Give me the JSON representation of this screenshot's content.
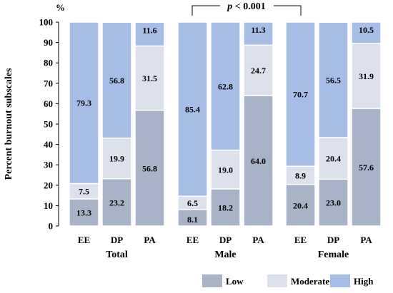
{
  "chart_data": {
    "type": "bar",
    "stacked": true,
    "ylabel": "Percent burnout subscales",
    "y_unit": "%",
    "ylim": [
      0,
      100
    ],
    "yticks": [
      0,
      10,
      20,
      30,
      40,
      50,
      60,
      70,
      80,
      90,
      100
    ],
    "grid": false,
    "legend_position": "bottom-right",
    "significance": "p < 0.001",
    "groups": [
      {
        "name": "Total",
        "categories": [
          "EE",
          "DP",
          "PA"
        ]
      },
      {
        "name": "Male",
        "categories": [
          "EE",
          "DP",
          "PA"
        ]
      },
      {
        "name": "Female",
        "categories": [
          "EE",
          "DP",
          "PA"
        ]
      }
    ],
    "categories": [
      "EE",
      "DP",
      "PA",
      "EE",
      "DP",
      "PA",
      "EE",
      "DP",
      "PA"
    ],
    "series": [
      {
        "name": "Low",
        "color": "#a9b3c8",
        "values": [
          13.3,
          23.2,
          56.8,
          8.1,
          18.2,
          64.0,
          20.4,
          23.0,
          57.6
        ]
      },
      {
        "name": "Moderate",
        "color": "#dde1ec",
        "values": [
          7.5,
          19.9,
          31.5,
          6.5,
          19.0,
          24.7,
          8.9,
          20.4,
          31.9
        ]
      },
      {
        "name": "High",
        "color": "#a6bde6",
        "values": [
          79.3,
          56.8,
          11.6,
          85.4,
          62.8,
          11.3,
          70.7,
          56.5,
          10.5
        ]
      }
    ],
    "value_labels": [
      [
        "13.3",
        "23.2",
        "56.8",
        "8.1",
        "18.2",
        "64.0",
        "20.4",
        "23.0",
        "57.6"
      ],
      [
        "7.5",
        "19.9",
        "31.5",
        "6.5",
        "19.0",
        "24.7",
        "8.9",
        "20.4",
        "31.9"
      ],
      [
        "79.3",
        "56.8",
        "11.6",
        "85.4",
        "62.8",
        "11.3",
        "70.7",
        "56.5",
        "10.5"
      ]
    ]
  }
}
